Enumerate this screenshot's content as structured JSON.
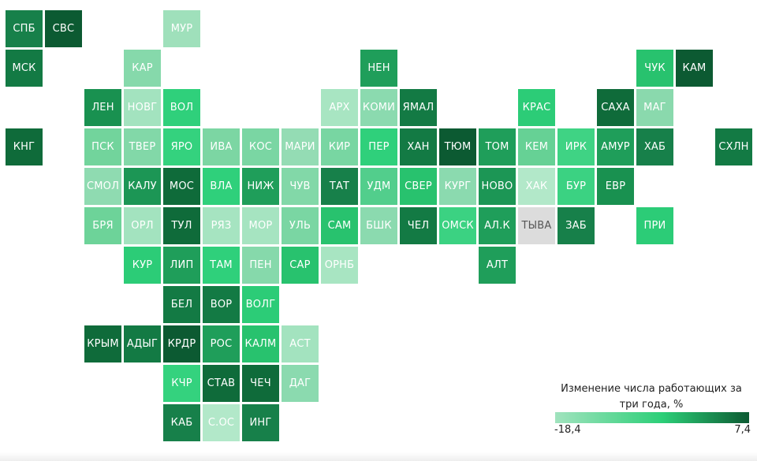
{
  "legend": {
    "title": "Изменение числа работающих за три года, %",
    "min_label": "-18,4",
    "max_label": "7,4",
    "min_value": -18.4,
    "max_value": 7.4,
    "color_low": "#a1e3be",
    "color_mid": "#2ccf78",
    "color_high": "#0c5a32"
  },
  "nodata_color": "#dcdcdc",
  "regions": [
    {
      "label": "СПБ",
      "col": 0,
      "row": 0,
      "color": "#17804a"
    },
    {
      "label": "СВС",
      "col": 1,
      "row": 0,
      "color": "#0c5a32"
    },
    {
      "label": "МУР",
      "col": 4,
      "row": 0,
      "color": "#9fe0bb"
    },
    {
      "label": "МСК",
      "col": 0,
      "row": 1,
      "color": "#137a44"
    },
    {
      "label": "КАР",
      "col": 3,
      "row": 1,
      "color": "#86d9ab"
    },
    {
      "label": "НЕН",
      "col": 9,
      "row": 1,
      "color": "#1f9e5a"
    },
    {
      "label": "ЧУК",
      "col": 16,
      "row": 1,
      "color": "#28c26e"
    },
    {
      "label": "КАМ",
      "col": 17,
      "row": 1,
      "color": "#0c5a32"
    },
    {
      "label": "ЛЕН",
      "col": 2,
      "row": 2,
      "color": "#199150"
    },
    {
      "label": "НОВГ",
      "col": 3,
      "row": 2,
      "color": "#a3e3bf"
    },
    {
      "label": "ВОЛ",
      "col": 4,
      "row": 2,
      "color": "#2fd07b"
    },
    {
      "label": "АРХ",
      "col": 8,
      "row": 2,
      "color": "#a8e5c2"
    },
    {
      "label": "КОМИ",
      "col": 9,
      "row": 2,
      "color": "#8bdaaf"
    },
    {
      "label": "ЯМАЛ",
      "col": 10,
      "row": 2,
      "color": "#137a44"
    },
    {
      "label": "КРАС",
      "col": 13,
      "row": 2,
      "color": "#2ccc77"
    },
    {
      "label": "САХА",
      "col": 15,
      "row": 2,
      "color": "#0f6b3a"
    },
    {
      "label": "МАГ",
      "col": 16,
      "row": 2,
      "color": "#8ad9ad"
    },
    {
      "label": "КНГ",
      "col": 0,
      "row": 3,
      "color": "#0f6b3a"
    },
    {
      "label": "ПСК",
      "col": 2,
      "row": 3,
      "color": "#72d49c"
    },
    {
      "label": "ТВЕР",
      "col": 3,
      "row": 3,
      "color": "#82d8a8"
    },
    {
      "label": "ЯРО",
      "col": 4,
      "row": 3,
      "color": "#34d27e"
    },
    {
      "label": "ИВА",
      "col": 5,
      "row": 3,
      "color": "#7cd6a3"
    },
    {
      "label": "КОС",
      "col": 6,
      "row": 3,
      "color": "#7ad6a3"
    },
    {
      "label": "МАРИ",
      "col": 7,
      "row": 3,
      "color": "#94dcb4"
    },
    {
      "label": "КИР",
      "col": 8,
      "row": 3,
      "color": "#78d6a2"
    },
    {
      "label": "ПЕР",
      "col": 9,
      "row": 3,
      "color": "#2fd07b"
    },
    {
      "label": "ХАН",
      "col": 10,
      "row": 3,
      "color": "#137a44"
    },
    {
      "label": "ТЮМ",
      "col": 11,
      "row": 3,
      "color": "#0c5a32"
    },
    {
      "label": "ТОМ",
      "col": 12,
      "row": 3,
      "color": "#1f9e5a"
    },
    {
      "label": "КЕМ",
      "col": 13,
      "row": 3,
      "color": "#66d195"
    },
    {
      "label": "ИРК",
      "col": 14,
      "row": 3,
      "color": "#3fd384"
    },
    {
      "label": "АМУР",
      "col": 15,
      "row": 3,
      "color": "#1f9e5a"
    },
    {
      "label": "ХАБ",
      "col": 16,
      "row": 3,
      "color": "#17804a"
    },
    {
      "label": "СХЛН",
      "col": 18,
      "row": 3,
      "color": "#137a44"
    },
    {
      "label": "СМОЛ",
      "col": 2,
      "row": 4,
      "color": "#8fdbb1"
    },
    {
      "label": "КАЛУ",
      "col": 3,
      "row": 4,
      "color": "#1c9655"
    },
    {
      "label": "МОС",
      "col": 4,
      "row": 4,
      "color": "#0f6b3a"
    },
    {
      "label": "ВЛА",
      "col": 5,
      "row": 4,
      "color": "#2fd07b"
    },
    {
      "label": "НИЖ",
      "col": 6,
      "row": 4,
      "color": "#1f9e5a"
    },
    {
      "label": "ЧУВ",
      "col": 7,
      "row": 4,
      "color": "#82d8a8"
    },
    {
      "label": "ТАТ",
      "col": 8,
      "row": 4,
      "color": "#17804a"
    },
    {
      "label": "УДМ",
      "col": 9,
      "row": 4,
      "color": "#52ce8c"
    },
    {
      "label": "СВЕР",
      "col": 10,
      "row": 4,
      "color": "#28c26e"
    },
    {
      "label": "КУРГ",
      "col": 11,
      "row": 4,
      "color": "#8bdaaf"
    },
    {
      "label": "НОВО",
      "col": 12,
      "row": 4,
      "color": "#1c9655"
    },
    {
      "label": "ХАК",
      "col": 13,
      "row": 4,
      "color": "#b2e8c9"
    },
    {
      "label": "БУР",
      "col": 14,
      "row": 4,
      "color": "#3bd282"
    },
    {
      "label": "ЕВР",
      "col": 15,
      "row": 4,
      "color": "#199150"
    },
    {
      "label": "БРЯ",
      "col": 2,
      "row": 5,
      "color": "#6dd399"
    },
    {
      "label": "ОРЛ",
      "col": 3,
      "row": 5,
      "color": "#a3e3bf"
    },
    {
      "label": "ТУЛ",
      "col": 4,
      "row": 5,
      "color": "#0f6b3a"
    },
    {
      "label": "РЯЗ",
      "col": 5,
      "row": 5,
      "color": "#a6e4c1"
    },
    {
      "label": "МОР",
      "col": 6,
      "row": 5,
      "color": "#a6e4c1"
    },
    {
      "label": "УЛЬ",
      "col": 7,
      "row": 5,
      "color": "#7ad6a3"
    },
    {
      "label": "САМ",
      "col": 8,
      "row": 5,
      "color": "#28c26e"
    },
    {
      "label": "БШК",
      "col": 9,
      "row": 5,
      "color": "#8bdaaf"
    },
    {
      "label": "ЧЕЛ",
      "col": 10,
      "row": 5,
      "color": "#137a44"
    },
    {
      "label": "ОМСК",
      "col": 11,
      "row": 5,
      "color": "#3bd282"
    },
    {
      "label": "АЛ.К",
      "col": 12,
      "row": 5,
      "color": "#1f9e5a"
    },
    {
      "label": "ТЫВА",
      "col": 13,
      "row": 5,
      "color": "",
      "nodata": true
    },
    {
      "label": "ЗАБ",
      "col": 14,
      "row": 5,
      "color": "#17804a"
    },
    {
      "label": "ПРИ",
      "col": 16,
      "row": 5,
      "color": "#2ccc77"
    },
    {
      "label": "КУР",
      "col": 3,
      "row": 6,
      "color": "#2ccc77"
    },
    {
      "label": "ЛИП",
      "col": 4,
      "row": 6,
      "color": "#1f9e5a"
    },
    {
      "label": "ТАМ",
      "col": 5,
      "row": 6,
      "color": "#2fd07b"
    },
    {
      "label": "ПЕН",
      "col": 6,
      "row": 6,
      "color": "#86d9ab"
    },
    {
      "label": "САР",
      "col": 7,
      "row": 6,
      "color": "#28c26e"
    },
    {
      "label": "ОРНБ",
      "col": 8,
      "row": 6,
      "color": "#a8e5c2"
    },
    {
      "label": "АЛТ",
      "col": 12,
      "row": 6,
      "color": "#1f9e5a"
    },
    {
      "label": "БЕЛ",
      "col": 4,
      "row": 7,
      "color": "#137a44"
    },
    {
      "label": "ВОР",
      "col": 5,
      "row": 7,
      "color": "#137a44"
    },
    {
      "label": "ВОЛГ",
      "col": 6,
      "row": 7,
      "color": "#2ccc77"
    },
    {
      "label": "КРЫМ",
      "col": 2,
      "row": 8,
      "color": "#0f6b3a"
    },
    {
      "label": "АДЫГ",
      "col": 3,
      "row": 8,
      "color": "#137a44"
    },
    {
      "label": "КРДР",
      "col": 4,
      "row": 8,
      "color": "#0c5a32"
    },
    {
      "label": "РОС",
      "col": 5,
      "row": 8,
      "color": "#1f9e5a"
    },
    {
      "label": "КАЛМ",
      "col": 6,
      "row": 8,
      "color": "#28c26e"
    },
    {
      "label": "АСТ",
      "col": 7,
      "row": 8,
      "color": "#a3e3bf"
    },
    {
      "label": "КЧР",
      "col": 4,
      "row": 9,
      "color": "#34d27e"
    },
    {
      "label": "СТАВ",
      "col": 5,
      "row": 9,
      "color": "#0f6b3a"
    },
    {
      "label": "ЧЕЧ",
      "col": 6,
      "row": 9,
      "color": "#0f6b3a"
    },
    {
      "label": "ДАГ",
      "col": 7,
      "row": 9,
      "color": "#8bdaaf"
    },
    {
      "label": "КАБ",
      "col": 4,
      "row": 10,
      "color": "#17804a"
    },
    {
      "label": "С.ОС",
      "col": 5,
      "row": 10,
      "color": "#b2e8c9"
    },
    {
      "label": "ИНГ",
      "col": 6,
      "row": 10,
      "color": "#17804a"
    }
  ]
}
